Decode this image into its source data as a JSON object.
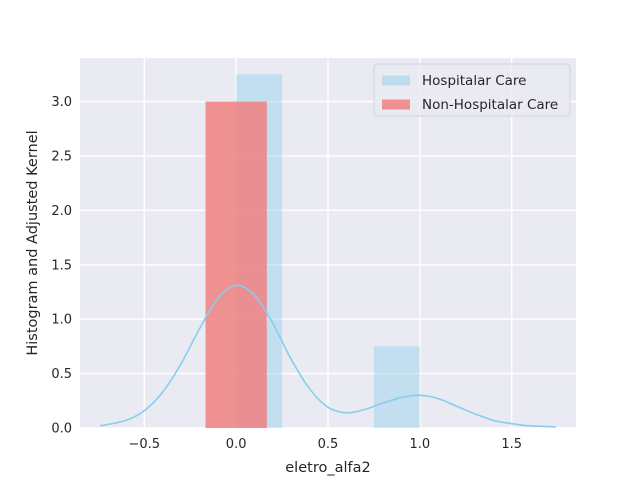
{
  "chart_data": {
    "type": "bar",
    "xlabel": "eletro_alfa2",
    "ylabel": "Histogram and Adjusted Kernel",
    "xlim": [
      -0.85,
      1.85
    ],
    "ylim": [
      0,
      3.4
    ],
    "x_ticks": [
      -0.5,
      0.0,
      0.5,
      1.0,
      1.5
    ],
    "y_ticks": [
      0.0,
      0.5,
      1.0,
      1.5,
      2.0,
      2.5,
      3.0
    ],
    "grid": true,
    "legend_position": "top-right",
    "series": [
      {
        "name": "Hospitalar Care",
        "color": "#87CEEB",
        "bins": [
          {
            "x0": 0.0,
            "x1": 0.25,
            "height": 3.25
          },
          {
            "x0": 0.75,
            "x1": 1.0,
            "height": 0.75
          }
        ],
        "kde_x": [
          -0.74,
          -0.6,
          -0.5,
          -0.4,
          -0.3,
          -0.2,
          -0.1,
          0.0,
          0.1,
          0.2,
          0.3,
          0.4,
          0.5,
          0.6,
          0.7,
          0.8,
          0.9,
          1.0,
          1.1,
          1.2,
          1.3,
          1.4,
          1.5,
          1.6,
          1.74
        ],
        "kde_y": [
          0.02,
          0.07,
          0.16,
          0.33,
          0.59,
          0.91,
          1.19,
          1.31,
          1.22,
          0.96,
          0.63,
          0.36,
          0.19,
          0.14,
          0.17,
          0.23,
          0.28,
          0.3,
          0.27,
          0.2,
          0.13,
          0.07,
          0.04,
          0.02,
          0.01
        ]
      },
      {
        "name": "Non-Hospitalar Care",
        "color": "#F08080",
        "bins": [
          {
            "x0": -0.1667,
            "x1": 0.1667,
            "height": 3.0
          }
        ]
      }
    ]
  }
}
